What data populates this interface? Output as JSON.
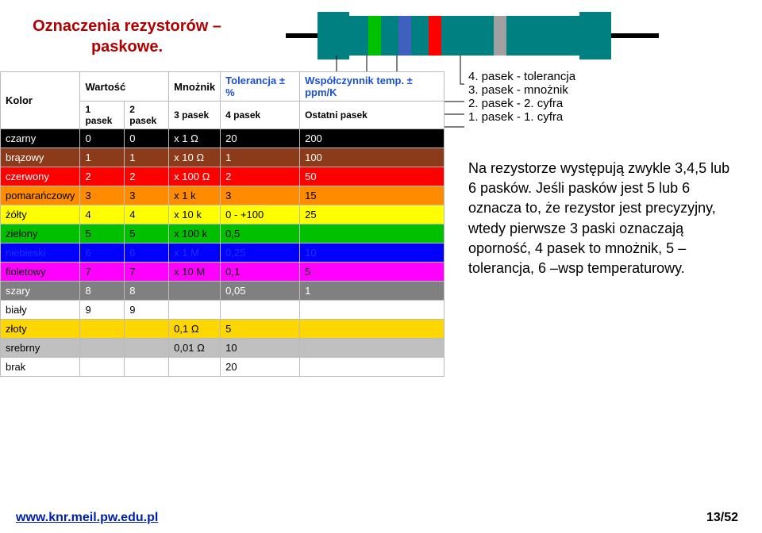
{
  "title": "Oznaczenia rezystorów – paskowe.",
  "resistor": {
    "body_color": "#008080",
    "bands": [
      {
        "color": "#00c000"
      },
      {
        "color": "#4060c0"
      },
      {
        "color": "#ff0000"
      },
      {
        "color": "#a0a0a0"
      }
    ]
  },
  "legend": {
    "l4": "4. pasek - tolerancja",
    "l3": "3. pasek - mnożnik",
    "l2": "2. pasek - 2. cyfra",
    "l1": "1. pasek - 1. cyfra"
  },
  "paragraph": "Na rezystorze występują zwykle 3,4,5 lub 6 pasków. Jeśli pasków jest 5 lub 6 oznacza to, że rezystor jest precyzyjny, wtedy pierwsze 3 paski oznaczają oporność, 4 pasek to mnożnik, 5 – tolerancja, 6 –wsp temperaturowy.",
  "table": {
    "header1": {
      "kolor": "Kolor",
      "wartosc": "Wartość",
      "mnoznik": "Mnożnik",
      "tol": "Tolerancja ± %",
      "temp": "Współczynnik temp. ± ppm/K"
    },
    "header2": {
      "p1": "1 pasek",
      "p2": "2 pasek",
      "p3": "3 pasek",
      "p4": "4 pasek",
      "p5": "Ostatni pasek"
    },
    "rows": [
      {
        "bg": "#000000",
        "fg": "#ffffff",
        "name": "czarny",
        "v1": "0",
        "v2": "0",
        "m": "x 1 Ω",
        "tol": "20",
        "temp": "200"
      },
      {
        "bg": "#8b3a1a",
        "fg": "#ffffff",
        "name": "brązowy",
        "v1": "1",
        "v2": "1",
        "m": "x 10 Ω",
        "tol": "1",
        "temp": "100"
      },
      {
        "bg": "#ff0000",
        "fg": "#ffffff",
        "name": "czerwony",
        "v1": "2",
        "v2": "2",
        "m": "x 100 Ω",
        "tol": "2",
        "temp": "50"
      },
      {
        "bg": "#ff8c00",
        "fg": "#000000",
        "name": "pomarańczowy",
        "v1": "3",
        "v2": "3",
        "m": "x 1 k",
        "tol": "3",
        "temp": "15"
      },
      {
        "bg": "#ffff00",
        "fg": "#000000",
        "name": "żółty",
        "v1": "4",
        "v2": "4",
        "m": "x 10 k",
        "tol": "0 - +100",
        "temp": "25"
      },
      {
        "bg": "#00c000",
        "fg": "#000000",
        "name": "zielony",
        "v1": "5",
        "v2": "5",
        "m": "x 100 k",
        "tol": "0,5",
        "temp": ""
      },
      {
        "bg": "#0000ff",
        "fg": "#2030ff",
        "name": "niebieski",
        "v1": "6",
        "v2": "6",
        "m": "x 1 M",
        "tol": "0,25",
        "temp": "10"
      },
      {
        "bg": "#ff00ff",
        "fg": "#000000",
        "name": "fioletowy",
        "v1": "7",
        "v2": "7",
        "m": "x 10 M",
        "tol": "0,1",
        "temp": "5"
      },
      {
        "bg": "#808080",
        "fg": "#ffffff",
        "name": "szary",
        "v1": "8",
        "v2": "8",
        "m": "",
        "tol": "0,05",
        "temp": "1"
      },
      {
        "bg": "#ffffff",
        "fg": "#000000",
        "name": "biały",
        "v1": "9",
        "v2": "9",
        "m": "",
        "tol": "",
        "temp": ""
      },
      {
        "bg": "#ffd700",
        "fg": "#000000",
        "name": "złoty",
        "v1": "",
        "v2": "",
        "m": "0,1 Ω",
        "tol": "5",
        "temp": ""
      },
      {
        "bg": "#c0c0c0",
        "fg": "#000000",
        "name": "srebrny",
        "v1": "",
        "v2": "",
        "m": "0,01 Ω",
        "tol": "10",
        "temp": ""
      },
      {
        "bg": "#ffffff",
        "fg": "#000000",
        "name": "brak",
        "v1": "",
        "v2": "",
        "m": "",
        "tol": "20",
        "temp": ""
      }
    ]
  },
  "footer": {
    "url": "www.knr.meil.pw.edu.pl",
    "page": "13/52"
  }
}
